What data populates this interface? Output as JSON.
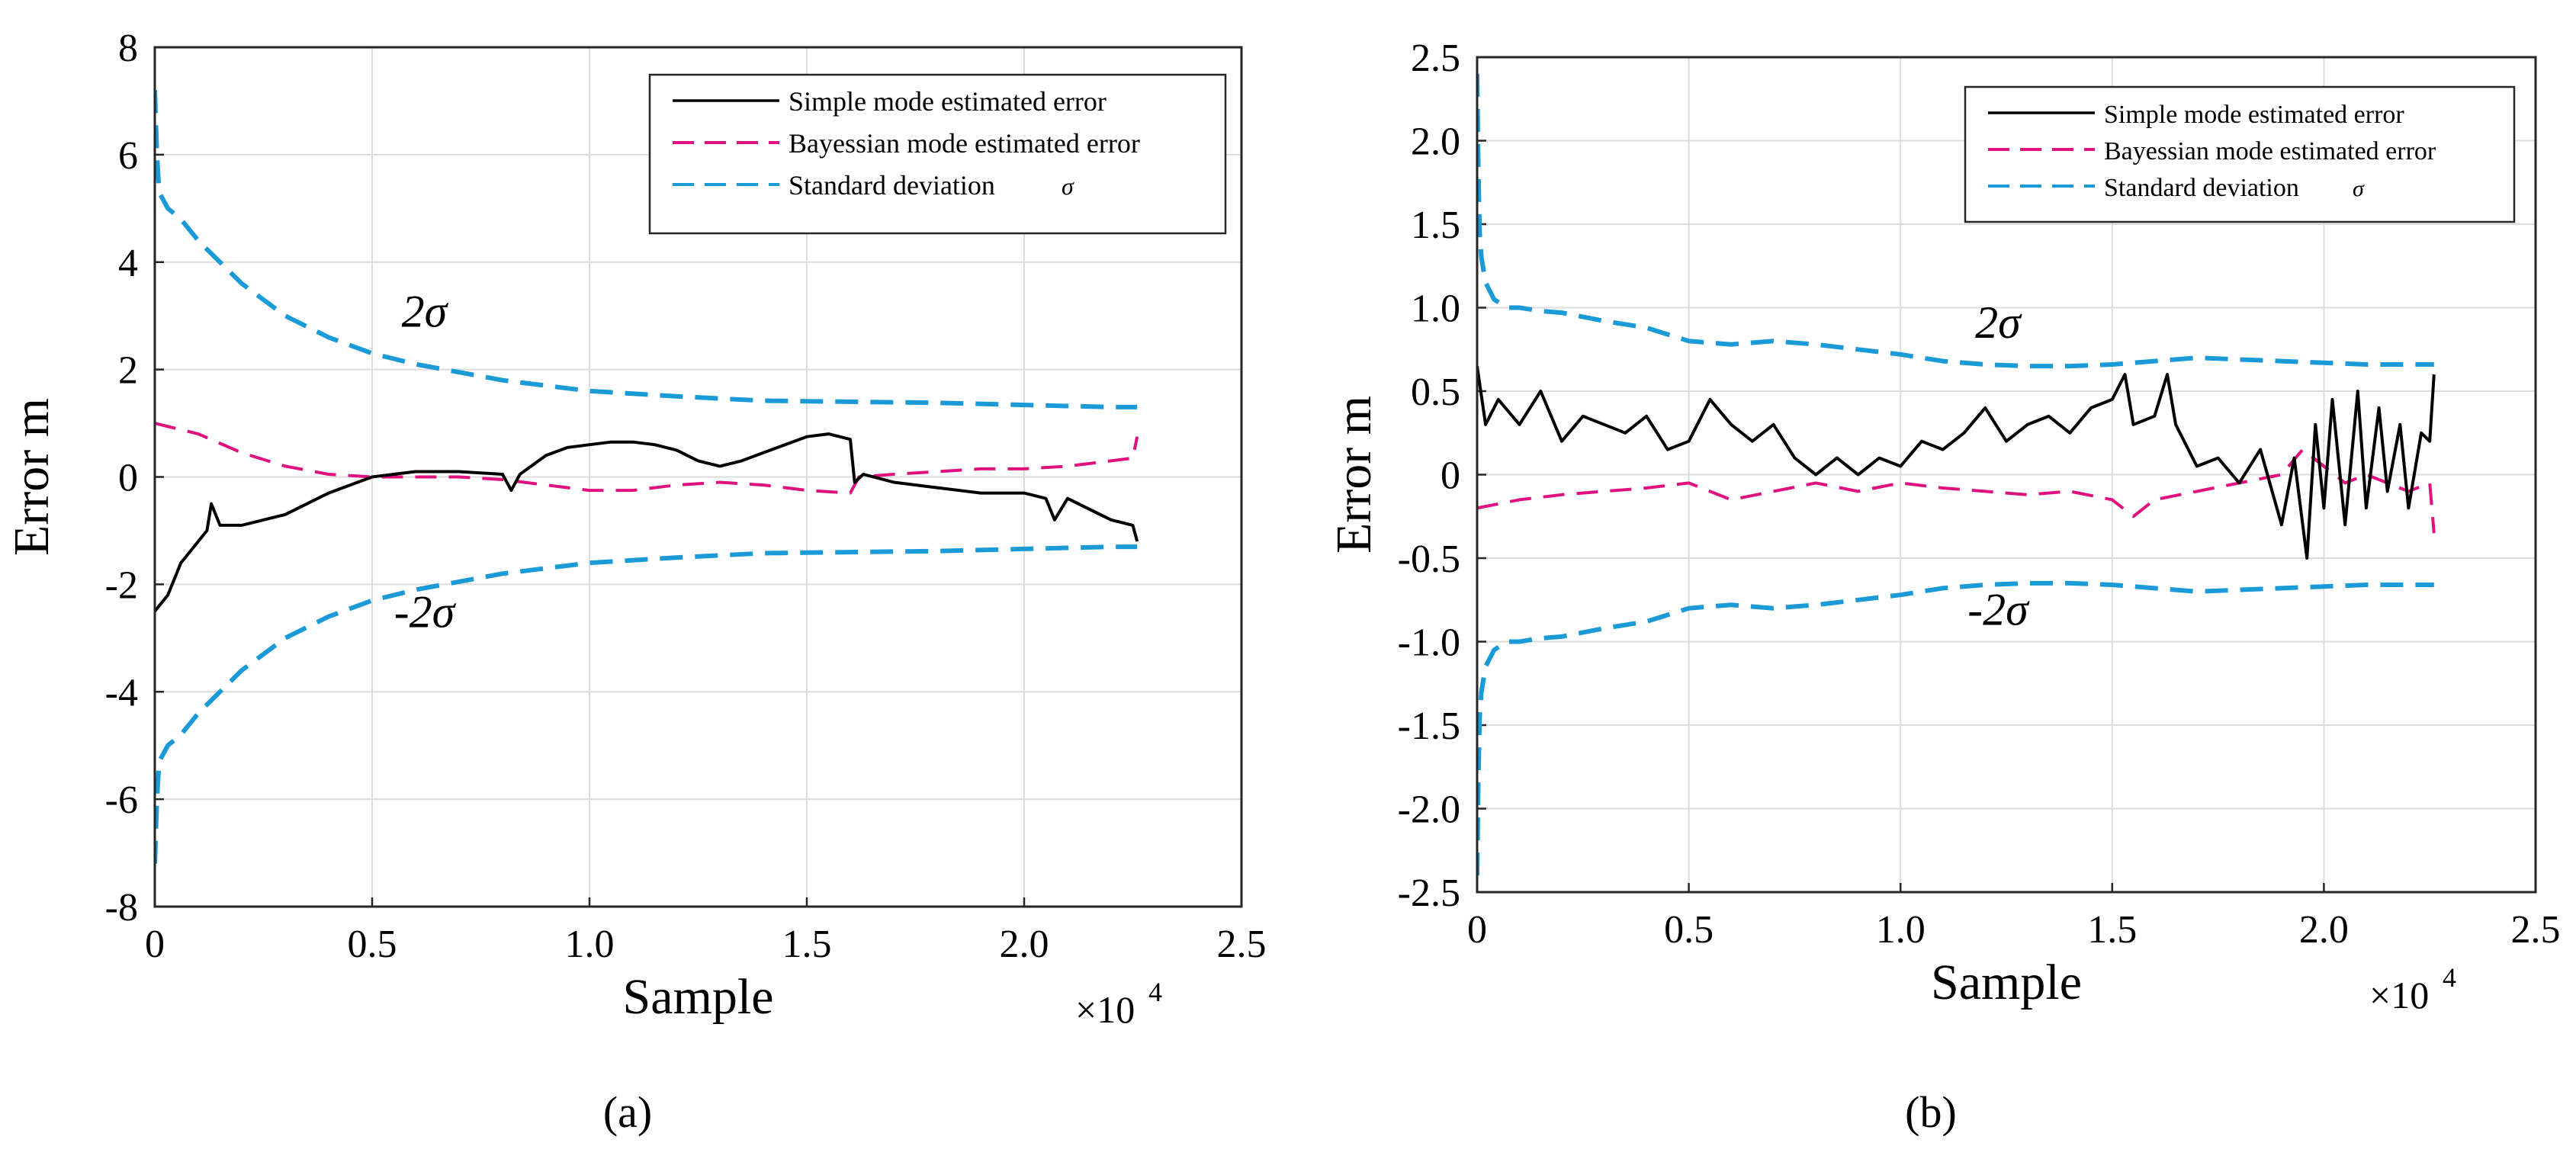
{
  "colors": {
    "simple": "#000000",
    "bayes": "#e0107e",
    "sigma": "#1a9ad6",
    "grid": "#dcdcdc",
    "axis": "#262626"
  },
  "chart_data": [
    {
      "type": "line",
      "panel_label": "(a)",
      "xlabel": "Sample",
      "ylabel": "Error m",
      "x_multiplier": "×10",
      "x_multiplier_exp": "4",
      "xlim": [
        0,
        2.5
      ],
      "ylim": [
        -8,
        8
      ],
      "xticks": [
        0,
        0.5,
        1.0,
        1.5,
        2.0,
        2.5
      ],
      "xtick_labels": [
        "0",
        "0.5",
        "1.0",
        "1.5",
        "2.0",
        "2.5"
      ],
      "yticks": [
        -8,
        -6,
        -4,
        -2,
        0,
        2,
        4,
        6,
        8
      ],
      "ytick_labels": [
        "-8",
        "-6",
        "-4",
        "-2",
        "0",
        "2",
        "4",
        "6",
        "8"
      ],
      "grid": true,
      "legend_position": "top-right",
      "legend": [
        "Simple mode estimated error",
        "Bayessian mode estimated error",
        "Standard deviation"
      ],
      "legend_sigma": "σ",
      "annotations": [
        {
          "text": "2σ",
          "x": 0.62,
          "y": 2.8
        },
        {
          "text": "-2σ",
          "x": 0.62,
          "y": -2.8
        }
      ],
      "series": [
        {
          "name": "Simple mode estimated error",
          "color_key": "simple",
          "style": "solid",
          "x": [
            0,
            0.03,
            0.06,
            0.09,
            0.12,
            0.13,
            0.15,
            0.2,
            0.3,
            0.4,
            0.5,
            0.6,
            0.7,
            0.8,
            0.82,
            0.84,
            0.9,
            0.95,
            1.0,
            1.05,
            1.1,
            1.15,
            1.2,
            1.25,
            1.3,
            1.35,
            1.4,
            1.45,
            1.5,
            1.55,
            1.6,
            1.61,
            1.63,
            1.7,
            1.8,
            1.9,
            2.0,
            2.05,
            2.07,
            2.1,
            2.15,
            2.2,
            2.25,
            2.26
          ],
          "y": [
            -2.5,
            -2.2,
            -1.6,
            -1.3,
            -1.0,
            -0.5,
            -0.9,
            -0.9,
            -0.7,
            -0.3,
            0.0,
            0.1,
            0.1,
            0.05,
            -0.25,
            0.05,
            0.4,
            0.55,
            0.6,
            0.65,
            0.65,
            0.6,
            0.5,
            0.3,
            0.2,
            0.3,
            0.45,
            0.6,
            0.75,
            0.8,
            0.7,
            -0.1,
            0.05,
            -0.1,
            -0.2,
            -0.3,
            -0.3,
            -0.4,
            -0.8,
            -0.4,
            -0.6,
            -0.8,
            -0.9,
            -1.2
          ]
        },
        {
          "name": "Bayessian mode estimated error",
          "color_key": "bayes",
          "style": "dashed",
          "x": [
            0,
            0.1,
            0.2,
            0.3,
            0.4,
            0.5,
            0.6,
            0.7,
            0.8,
            0.9,
            1.0,
            1.1,
            1.2,
            1.3,
            1.4,
            1.5,
            1.6,
            1.62,
            1.7,
            1.8,
            1.9,
            2.0,
            2.1,
            2.2,
            2.25,
            2.26
          ],
          "y": [
            1.0,
            0.8,
            0.45,
            0.2,
            0.05,
            0.0,
            0.0,
            0.0,
            -0.05,
            -0.15,
            -0.25,
            -0.25,
            -0.15,
            -0.1,
            -0.15,
            -0.25,
            -0.3,
            0.0,
            0.05,
            0.1,
            0.15,
            0.15,
            0.2,
            0.3,
            0.35,
            0.75
          ]
        },
        {
          "name": "Standard deviation +2σ",
          "color_key": "sigma",
          "style": "dashed",
          "x": [
            0,
            0.005,
            0.01,
            0.03,
            0.06,
            0.1,
            0.15,
            0.2,
            0.3,
            0.4,
            0.5,
            0.6,
            0.8,
            1.0,
            1.2,
            1.4,
            1.6,
            1.8,
            2.0,
            2.2,
            2.26
          ],
          "y": [
            7.2,
            6.0,
            5.3,
            5.0,
            4.8,
            4.4,
            4.0,
            3.6,
            3.0,
            2.6,
            2.3,
            2.1,
            1.8,
            1.6,
            1.5,
            1.42,
            1.4,
            1.38,
            1.34,
            1.3,
            1.3
          ]
        },
        {
          "name": "Standard deviation -2σ",
          "color_key": "sigma",
          "style": "dashed",
          "x": [
            0,
            0.005,
            0.01,
            0.03,
            0.06,
            0.1,
            0.15,
            0.2,
            0.3,
            0.4,
            0.5,
            0.6,
            0.8,
            1.0,
            1.2,
            1.4,
            1.6,
            1.8,
            2.0,
            2.2,
            2.26
          ],
          "y": [
            -7.2,
            -6.0,
            -5.3,
            -5.0,
            -4.8,
            -4.4,
            -4.0,
            -3.6,
            -3.0,
            -2.6,
            -2.3,
            -2.1,
            -1.8,
            -1.6,
            -1.5,
            -1.42,
            -1.4,
            -1.38,
            -1.34,
            -1.3,
            -1.3
          ]
        }
      ]
    },
    {
      "type": "line",
      "panel_label": "(b)",
      "xlabel": "Sample",
      "ylabel": "Error m",
      "x_multiplier": "×10",
      "x_multiplier_exp": "4",
      "xlim": [
        0,
        2.5
      ],
      "ylim": [
        -2.5,
        2.5
      ],
      "xticks": [
        0,
        0.5,
        1.0,
        1.5,
        2.0,
        2.5
      ],
      "xtick_labels": [
        "0",
        "0.5",
        "1.0",
        "1.5",
        "2.0",
        "2.5"
      ],
      "yticks": [
        -2.5,
        -2.0,
        -1.5,
        -1.0,
        -0.5,
        0,
        0.5,
        1.0,
        1.5,
        2.0,
        2.5
      ],
      "ytick_labels": [
        "-2.5",
        "-2.0",
        "-1.5",
        "-1.0",
        "-0.5",
        "0",
        "0.5",
        "1.0",
        "1.5",
        "2.0",
        "2.5"
      ],
      "grid": true,
      "legend_position": "top-right",
      "legend": [
        "Simple mode estimated error",
        "Bayessian mode estimated error",
        "Standard deviation"
      ],
      "legend_sigma": "σ",
      "annotations": [
        {
          "text": "2σ",
          "x": 1.23,
          "y": 0.82
        },
        {
          "text": "-2σ",
          "x": 1.23,
          "y": -0.9
        }
      ],
      "series": [
        {
          "name": "Simple mode estimated error",
          "color_key": "simple",
          "style": "solid",
          "x": [
            0,
            0.02,
            0.05,
            0.1,
            0.15,
            0.2,
            0.25,
            0.3,
            0.35,
            0.4,
            0.45,
            0.5,
            0.55,
            0.6,
            0.65,
            0.7,
            0.75,
            0.8,
            0.85,
            0.9,
            0.95,
            1.0,
            1.05,
            1.1,
            1.15,
            1.2,
            1.25,
            1.3,
            1.35,
            1.4,
            1.45,
            1.5,
            1.53,
            1.55,
            1.6,
            1.63,
            1.65,
            1.7,
            1.75,
            1.8,
            1.85,
            1.9,
            1.93,
            1.96,
            1.98,
            2.0,
            2.02,
            2.05,
            2.08,
            2.1,
            2.13,
            2.15,
            2.18,
            2.2,
            2.23,
            2.25,
            2.26
          ],
          "y": [
            0.65,
            0.3,
            0.45,
            0.3,
            0.5,
            0.2,
            0.35,
            0.3,
            0.25,
            0.35,
            0.15,
            0.2,
            0.45,
            0.3,
            0.2,
            0.3,
            0.1,
            0.0,
            0.1,
            0.0,
            0.1,
            0.05,
            0.2,
            0.15,
            0.25,
            0.4,
            0.2,
            0.3,
            0.35,
            0.25,
            0.4,
            0.45,
            0.6,
            0.3,
            0.35,
            0.6,
            0.3,
            0.05,
            0.1,
            -0.05,
            0.15,
            -0.3,
            0.1,
            -0.5,
            0.3,
            -0.2,
            0.45,
            -0.3,
            0.5,
            -0.2,
            0.4,
            -0.1,
            0.3,
            -0.2,
            0.25,
            0.2,
            0.6
          ]
        },
        {
          "name": "Bayessian mode estimated error",
          "color_key": "bayes",
          "style": "dashed",
          "x": [
            0,
            0.1,
            0.2,
            0.3,
            0.4,
            0.5,
            0.6,
            0.7,
            0.8,
            0.9,
            1.0,
            1.1,
            1.2,
            1.3,
            1.4,
            1.5,
            1.55,
            1.6,
            1.7,
            1.8,
            1.9,
            1.95,
            2.0,
            2.05,
            2.1,
            2.15,
            2.2,
            2.25,
            2.26
          ],
          "y": [
            -0.2,
            -0.15,
            -0.12,
            -0.1,
            -0.08,
            -0.05,
            -0.15,
            -0.1,
            -0.05,
            -0.1,
            -0.05,
            -0.08,
            -0.1,
            -0.12,
            -0.1,
            -0.15,
            -0.25,
            -0.15,
            -0.1,
            -0.05,
            0.0,
            0.15,
            0.05,
            -0.05,
            0.0,
            -0.05,
            -0.1,
            -0.05,
            -0.35
          ]
        },
        {
          "name": "Standard deviation +2σ",
          "color_key": "sigma",
          "style": "dashed",
          "x": [
            0,
            0.003,
            0.006,
            0.01,
            0.02,
            0.04,
            0.07,
            0.1,
            0.15,
            0.2,
            0.3,
            0.4,
            0.5,
            0.6,
            0.7,
            0.8,
            0.9,
            1.0,
            1.1,
            1.2,
            1.3,
            1.4,
            1.5,
            1.6,
            1.7,
            1.8,
            1.9,
            2.0,
            2.1,
            2.2,
            2.26
          ],
          "y": [
            2.4,
            1.8,
            1.45,
            1.3,
            1.15,
            1.05,
            1.0,
            1.0,
            0.98,
            0.97,
            0.92,
            0.88,
            0.8,
            0.78,
            0.8,
            0.78,
            0.75,
            0.72,
            0.68,
            0.66,
            0.65,
            0.65,
            0.66,
            0.68,
            0.7,
            0.69,
            0.68,
            0.67,
            0.66,
            0.66,
            0.66
          ]
        },
        {
          "name": "Standard deviation -2σ",
          "color_key": "sigma",
          "style": "dashed",
          "x": [
            0,
            0.003,
            0.006,
            0.01,
            0.02,
            0.04,
            0.07,
            0.1,
            0.15,
            0.2,
            0.3,
            0.4,
            0.5,
            0.6,
            0.7,
            0.8,
            0.9,
            1.0,
            1.1,
            1.2,
            1.3,
            1.4,
            1.5,
            1.6,
            1.7,
            1.8,
            1.9,
            2.0,
            2.1,
            2.2,
            2.26
          ],
          "y": [
            -2.4,
            -1.8,
            -1.45,
            -1.3,
            -1.15,
            -1.05,
            -1.0,
            -1.0,
            -0.98,
            -0.97,
            -0.92,
            -0.88,
            -0.8,
            -0.78,
            -0.8,
            -0.78,
            -0.75,
            -0.72,
            -0.68,
            -0.66,
            -0.65,
            -0.65,
            -0.66,
            -0.68,
            -0.7,
            -0.69,
            -0.68,
            -0.67,
            -0.66,
            -0.66,
            -0.66
          ]
        }
      ]
    }
  ]
}
